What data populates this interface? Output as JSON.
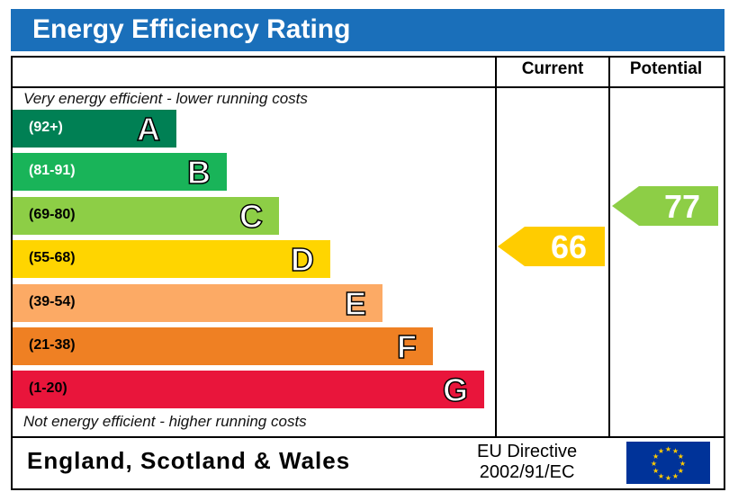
{
  "title": "Energy Efficiency Rating",
  "columns": {
    "current": "Current",
    "potential": "Potential"
  },
  "top_note": "Very energy efficient - lower running costs",
  "bottom_note": "Not energy efficient - higher running costs",
  "footer": {
    "region": "England, Scotland & Wales",
    "directive_line1": "EU Directive",
    "directive_line2": "2002/91/EC",
    "flag_icon": "eu-flag-icon"
  },
  "chart_data": {
    "type": "bar",
    "title": "Energy Efficiency Rating",
    "bands": [
      {
        "letter": "A",
        "range": "(92+)",
        "color": "#008054",
        "text_color": "#ffffff"
      },
      {
        "letter": "B",
        "range": "(81-91)",
        "color": "#19b459",
        "text_color": "#ffffff"
      },
      {
        "letter": "C",
        "range": "(69-80)",
        "color": "#8dce46",
        "text_color": "#000000"
      },
      {
        "letter": "D",
        "range": "(55-68)",
        "color": "#ffd500",
        "text_color": "#000000"
      },
      {
        "letter": "E",
        "range": "(39-54)",
        "color": "#fcaa65",
        "text_color": "#000000"
      },
      {
        "letter": "F",
        "range": "(21-38)",
        "color": "#ef8023",
        "text_color": "#000000"
      },
      {
        "letter": "G",
        "range": "(1-20)",
        "color": "#e9153b",
        "text_color": "#000000"
      }
    ],
    "current": {
      "value": "66",
      "band": "D",
      "color": "#ffcc00"
    },
    "potential": {
      "value": "77",
      "band": "C",
      "color": "#8dce46"
    }
  }
}
